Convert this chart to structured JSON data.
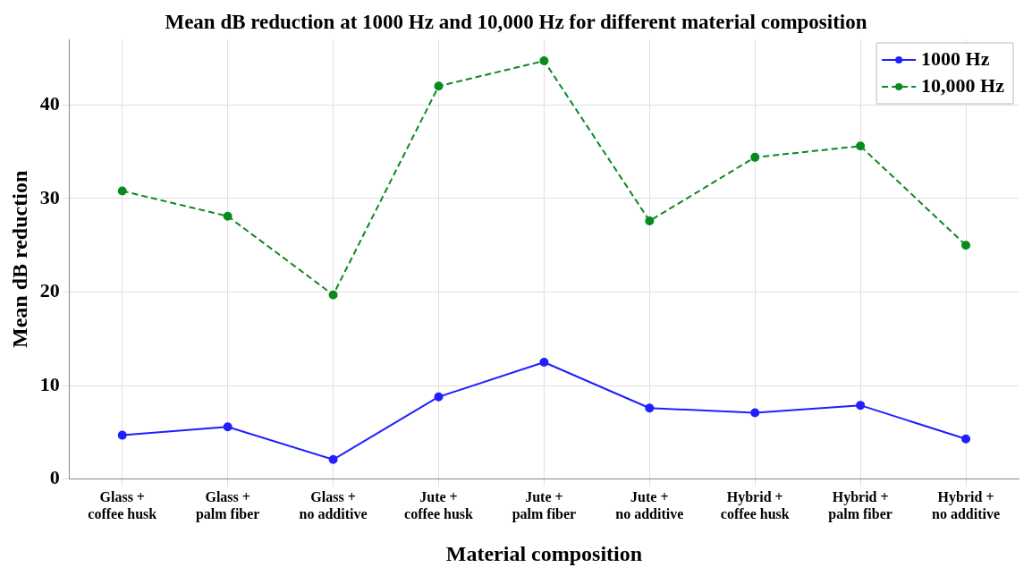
{
  "chart_data": {
    "type": "line",
    "title": "Mean dB reduction at 1000 Hz and 10,000 Hz for different material composition",
    "xlabel": "Material composition",
    "ylabel": "Mean dB reduction",
    "categories": [
      "Glass + coffee husk",
      "Glass + palm fiber",
      "Glass + no additive",
      "Jute + coffee husk",
      "Jute + palm fiber",
      "Jute + no additive",
      "Hybrid + coffee husk",
      "Hybrid + palm fiber",
      "Hybrid + no additive"
    ],
    "series": [
      {
        "name": "1000 Hz",
        "color": "#1f1fff",
        "line_style": "solid",
        "values": [
          4.7,
          5.6,
          2.1,
          8.8,
          12.5,
          7.6,
          7.1,
          7.9,
          4.3
        ]
      },
      {
        "name": "10,000 Hz",
        "color": "#0a8a1e",
        "line_style": "dashed",
        "values": [
          30.8,
          28.1,
          19.7,
          42.0,
          44.7,
          27.6,
          34.4,
          35.6,
          25.0
        ]
      }
    ],
    "ylim": [
      0,
      47
    ],
    "yticks": [
      0,
      10,
      20,
      30,
      40
    ],
    "grid": true,
    "legend": "top right",
    "marker": "circle"
  }
}
